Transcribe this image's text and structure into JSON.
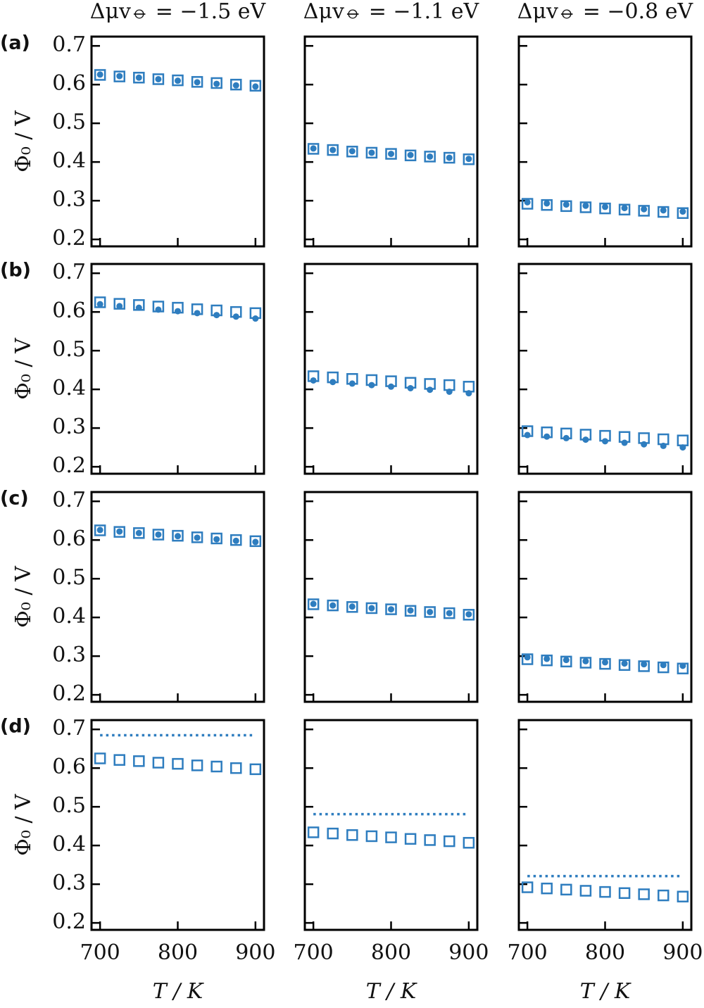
{
  "chart_data": [
    {
      "type": "scatter",
      "title": "Δμv⦵ = −1.5 eV",
      "label": "(a)",
      "ylabel": "Φ₀ / V",
      "x": [
        700,
        725,
        750,
        775,
        800,
        825,
        850,
        875,
        900
      ],
      "xlim": [
        689,
        911
      ],
      "ylim": [
        0.182,
        0.724
      ],
      "xticks": [
        700,
        800,
        900
      ],
      "yticks": [
        0.2,
        0.3,
        0.4,
        0.5,
        0.6,
        0.7
      ],
      "series": [
        {
          "marker": "square",
          "color": "#2e7dbf",
          "values": [
            0.625,
            0.621,
            0.618,
            0.614,
            0.611,
            0.607,
            0.604,
            0.6,
            0.597
          ]
        },
        {
          "marker": "circle",
          "color": "#2e7dbf",
          "values": [
            0.626,
            0.622,
            0.618,
            0.614,
            0.61,
            0.606,
            0.602,
            0.598,
            0.595
          ]
        }
      ]
    },
    {
      "type": "scatter",
      "title": "Δμv⦵ = −1.1 eV",
      "x": [
        700,
        725,
        750,
        775,
        800,
        825,
        850,
        875,
        900
      ],
      "xlim": [
        689,
        911
      ],
      "ylim": [
        0.182,
        0.724
      ],
      "xticks": [
        700,
        800,
        900
      ],
      "yticks": [
        0.2,
        0.3,
        0.4,
        0.5,
        0.6,
        0.7
      ],
      "series": [
        {
          "marker": "square",
          "color": "#2e7dbf",
          "values": [
            0.434,
            0.431,
            0.427,
            0.424,
            0.421,
            0.417,
            0.414,
            0.411,
            0.407
          ]
        },
        {
          "marker": "circle",
          "color": "#2e7dbf",
          "values": [
            0.435,
            0.431,
            0.428,
            0.424,
            0.421,
            0.418,
            0.414,
            0.411,
            0.408
          ]
        }
      ]
    },
    {
      "type": "scatter",
      "title": "Δμv⦵ = −0.8 eV",
      "x": [
        700,
        725,
        750,
        775,
        800,
        825,
        850,
        875,
        900
      ],
      "xlim": [
        689,
        911
      ],
      "ylim": [
        0.182,
        0.724
      ],
      "xticks": [
        700,
        800,
        900
      ],
      "yticks": [
        0.2,
        0.3,
        0.4,
        0.5,
        0.6,
        0.7
      ],
      "series": [
        {
          "marker": "square",
          "color": "#2e7dbf",
          "values": [
            0.292,
            0.289,
            0.286,
            0.283,
            0.28,
            0.277,
            0.274,
            0.271,
            0.268
          ]
        },
        {
          "marker": "circle",
          "color": "#2e7dbf",
          "values": [
            0.296,
            0.293,
            0.29,
            0.287,
            0.284,
            0.281,
            0.278,
            0.275,
            0.272
          ]
        }
      ]
    },
    {
      "type": "scatter",
      "label": "(b)",
      "ylabel": "Φ₀ / V",
      "x": [
        700,
        725,
        750,
        775,
        800,
        825,
        850,
        875,
        900
      ],
      "xlim": [
        689,
        911
      ],
      "ylim": [
        0.182,
        0.724
      ],
      "xticks": [
        700,
        800,
        900
      ],
      "yticks": [
        0.2,
        0.3,
        0.4,
        0.5,
        0.6,
        0.7
      ],
      "series": [
        {
          "marker": "square",
          "color": "#2e7dbf",
          "values": [
            0.625,
            0.621,
            0.618,
            0.614,
            0.611,
            0.607,
            0.604,
            0.6,
            0.597
          ]
        },
        {
          "marker": "circle",
          "color": "#2e7dbf",
          "values": [
            0.62,
            0.615,
            0.611,
            0.606,
            0.602,
            0.597,
            0.592,
            0.588,
            0.583
          ]
        }
      ]
    },
    {
      "type": "scatter",
      "x": [
        700,
        725,
        750,
        775,
        800,
        825,
        850,
        875,
        900
      ],
      "xlim": [
        689,
        911
      ],
      "ylim": [
        0.182,
        0.724
      ],
      "xticks": [
        700,
        800,
        900
      ],
      "yticks": [
        0.2,
        0.3,
        0.4,
        0.5,
        0.6,
        0.7
      ],
      "series": [
        {
          "marker": "square",
          "color": "#2e7dbf",
          "values": [
            0.434,
            0.431,
            0.427,
            0.424,
            0.421,
            0.417,
            0.414,
            0.411,
            0.407
          ]
        },
        {
          "marker": "circle",
          "color": "#2e7dbf",
          "values": [
            0.423,
            0.419,
            0.415,
            0.411,
            0.407,
            0.403,
            0.399,
            0.394,
            0.39
          ]
        }
      ]
    },
    {
      "type": "scatter",
      "x": [
        700,
        725,
        750,
        775,
        800,
        825,
        850,
        875,
        900
      ],
      "xlim": [
        689,
        911
      ],
      "ylim": [
        0.182,
        0.724
      ],
      "xticks": [
        700,
        800,
        900
      ],
      "yticks": [
        0.2,
        0.3,
        0.4,
        0.5,
        0.6,
        0.7
      ],
      "series": [
        {
          "marker": "square",
          "color": "#2e7dbf",
          "values": [
            0.292,
            0.289,
            0.286,
            0.283,
            0.28,
            0.277,
            0.274,
            0.271,
            0.268
          ]
        },
        {
          "marker": "circle",
          "color": "#2e7dbf",
          "values": [
            0.282,
            0.278,
            0.274,
            0.27,
            0.266,
            0.262,
            0.258,
            0.254,
            0.25
          ]
        }
      ]
    },
    {
      "type": "scatter",
      "label": "(c)",
      "ylabel": "Φ₀ / V",
      "x": [
        700,
        725,
        750,
        775,
        800,
        825,
        850,
        875,
        900
      ],
      "xlim": [
        689,
        911
      ],
      "ylim": [
        0.182,
        0.724
      ],
      "xticks": [
        700,
        800,
        900
      ],
      "yticks": [
        0.2,
        0.3,
        0.4,
        0.5,
        0.6,
        0.7
      ],
      "series": [
        {
          "marker": "square",
          "color": "#2e7dbf",
          "values": [
            0.625,
            0.621,
            0.618,
            0.614,
            0.611,
            0.607,
            0.604,
            0.6,
            0.597
          ]
        },
        {
          "marker": "circle",
          "color": "#2e7dbf",
          "values": [
            0.626,
            0.622,
            0.618,
            0.614,
            0.61,
            0.606,
            0.602,
            0.598,
            0.595
          ]
        }
      ]
    },
    {
      "type": "scatter",
      "x": [
        700,
        725,
        750,
        775,
        800,
        825,
        850,
        875,
        900
      ],
      "xlim": [
        689,
        911
      ],
      "ylim": [
        0.182,
        0.724
      ],
      "xticks": [
        700,
        800,
        900
      ],
      "yticks": [
        0.2,
        0.3,
        0.4,
        0.5,
        0.6,
        0.7
      ],
      "series": [
        {
          "marker": "square",
          "color": "#2e7dbf",
          "values": [
            0.434,
            0.431,
            0.427,
            0.424,
            0.421,
            0.417,
            0.414,
            0.411,
            0.407
          ]
        },
        {
          "marker": "circle",
          "color": "#2e7dbf",
          "values": [
            0.435,
            0.431,
            0.428,
            0.424,
            0.421,
            0.418,
            0.414,
            0.411,
            0.408
          ]
        }
      ]
    },
    {
      "type": "scatter",
      "x": [
        700,
        725,
        750,
        775,
        800,
        825,
        850,
        875,
        900
      ],
      "xlim": [
        689,
        911
      ],
      "ylim": [
        0.182,
        0.724
      ],
      "xticks": [
        700,
        800,
        900
      ],
      "yticks": [
        0.2,
        0.3,
        0.4,
        0.5,
        0.6,
        0.7
      ],
      "series": [
        {
          "marker": "square",
          "color": "#2e7dbf",
          "values": [
            0.292,
            0.289,
            0.286,
            0.283,
            0.28,
            0.277,
            0.274,
            0.271,
            0.268
          ]
        },
        {
          "marker": "circle",
          "color": "#2e7dbf",
          "values": [
            0.297,
            0.293,
            0.29,
            0.287,
            0.284,
            0.281,
            0.279,
            0.277,
            0.275
          ]
        }
      ]
    },
    {
      "type": "scatter",
      "label": "(d)",
      "ylabel": "Φ₀ / V",
      "xlabel": "T / K",
      "x": [
        700,
        725,
        750,
        775,
        800,
        825,
        850,
        875,
        900
      ],
      "xlim": [
        689,
        911
      ],
      "ylim": [
        0.182,
        0.724
      ],
      "xticks": [
        700,
        800,
        900
      ],
      "yticks": [
        0.2,
        0.3,
        0.4,
        0.5,
        0.6,
        0.7
      ],
      "series": [
        {
          "marker": "square",
          "color": "#2e7dbf",
          "values": [
            0.625,
            0.621,
            0.618,
            0.614,
            0.611,
            0.607,
            0.604,
            0.6,
            0.597
          ]
        },
        {
          "marker": "dotted-line",
          "color": "#2e7dbf",
          "values": [
            0.685,
            0.685,
            0.685,
            0.685,
            0.685,
            0.685,
            0.685,
            0.685,
            0.685
          ]
        }
      ]
    },
    {
      "type": "scatter",
      "xlabel": "T / K",
      "x": [
        700,
        725,
        750,
        775,
        800,
        825,
        850,
        875,
        900
      ],
      "xlim": [
        689,
        911
      ],
      "ylim": [
        0.182,
        0.724
      ],
      "xticks": [
        700,
        800,
        900
      ],
      "yticks": [
        0.2,
        0.3,
        0.4,
        0.5,
        0.6,
        0.7
      ],
      "series": [
        {
          "marker": "square",
          "color": "#2e7dbf",
          "values": [
            0.434,
            0.431,
            0.427,
            0.424,
            0.421,
            0.417,
            0.414,
            0.411,
            0.407
          ]
        },
        {
          "marker": "dotted-line",
          "color": "#2e7dbf",
          "values": [
            0.481,
            0.481,
            0.481,
            0.481,
            0.481,
            0.481,
            0.481,
            0.481,
            0.481
          ]
        }
      ]
    },
    {
      "type": "scatter",
      "xlabel": "T / K",
      "x": [
        700,
        725,
        750,
        775,
        800,
        825,
        850,
        875,
        900
      ],
      "xlim": [
        689,
        911
      ],
      "ylim": [
        0.182,
        0.724
      ],
      "xticks": [
        700,
        800,
        900
      ],
      "yticks": [
        0.2,
        0.3,
        0.4,
        0.5,
        0.6,
        0.7
      ],
      "series": [
        {
          "marker": "square",
          "color": "#2e7dbf",
          "values": [
            0.292,
            0.289,
            0.286,
            0.283,
            0.28,
            0.277,
            0.274,
            0.271,
            0.268
          ]
        },
        {
          "marker": "dotted-line",
          "color": "#2e7dbf",
          "values": [
            0.321,
            0.321,
            0.321,
            0.321,
            0.321,
            0.321,
            0.321,
            0.321,
            0.321
          ]
        }
      ]
    }
  ]
}
